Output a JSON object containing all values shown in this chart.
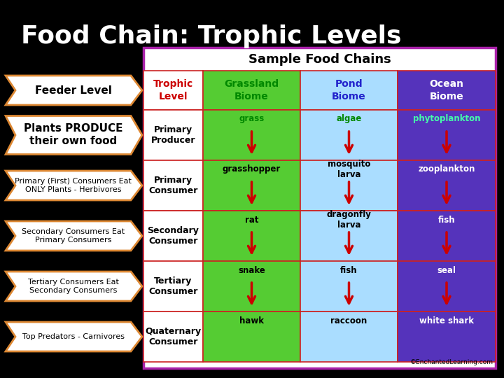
{
  "title": "Food Chain: Trophic Levels",
  "title_color": "#ffffff",
  "background_color": "#000000",
  "table_title": "Sample Food Chains",
  "col_headers": [
    "Trophic\nLevel",
    "Grassland\nBiome",
    "Pond\nBiome",
    "Ocean\nBiome"
  ],
  "col_header_bg_colors": [
    "#ffffff",
    "#55cc33",
    "#aaddff",
    "#5533bb"
  ],
  "col_header_text_colors": [
    "#cc0000",
    "#008800",
    "#2222cc",
    "#ffffff"
  ],
  "row_labels": [
    "Primary\nProducer",
    "Primary\nConsumer",
    "Secondary\nConsumer",
    "Tertiary\nConsumer",
    "Quaternary\nConsumer"
  ],
  "cell_bg_trophic": [
    "#ffffff",
    "#ffffff",
    "#ffffff",
    "#ffffff",
    "#ffffff"
  ],
  "cell_bg_grassland": [
    "#55cc33",
    "#55cc33",
    "#55cc33",
    "#55cc33",
    "#55cc33"
  ],
  "cell_bg_pond": [
    "#aaddff",
    "#aaddff",
    "#aaddff",
    "#aaddff",
    "#aaddff"
  ],
  "cell_bg_ocean": [
    "#5533bb",
    "#5533bb",
    "#5533bb",
    "#5533bb",
    "#5533bb"
  ],
  "grassland_texts": [
    "grass",
    "grasshopper",
    "rat",
    "snake",
    "hawk"
  ],
  "pond_texts": [
    "algae",
    "mosquito\nlarva",
    "dragonfly\nlarva",
    "fish",
    "raccoon"
  ],
  "ocean_texts": [
    "phytoplankton",
    "zooplankton",
    "fish",
    "seal",
    "white shark"
  ],
  "grassland_text_colors": [
    "#008800",
    "#000000",
    "#000000",
    "#000000",
    "#000000"
  ],
  "pond_text_colors": [
    "#008800",
    "#000000",
    "#000000",
    "#000000",
    "#000000"
  ],
  "ocean_text_colors": [
    "#44ffaa",
    "#ffffff",
    "#ffffff",
    "#ffffff",
    "#ffffff"
  ],
  "left_labels": [
    "Feeder Level",
    "Plants PRODUCE\ntheir own food",
    "Primary (First) Consumers Eat\nONLY Plants - Herbivores",
    "Secondary Consumers Eat\nPrimary Consumers",
    "Tertiary Consumers Eat\nSecondary Consumers",
    "Top Predators - Carnivores"
  ],
  "left_label_fontsizes": [
    11,
    11,
    8,
    8,
    8,
    8
  ],
  "left_label_fontweights": [
    "bold",
    "bold",
    "normal",
    "normal",
    "normal",
    "normal"
  ],
  "arrow_fill": "#ffffff",
  "arrow_edge": "#dd8833",
  "table_border_color": "#aa22aa",
  "grid_color": "#cc2222",
  "copyright": "©EnchantedLearning.com"
}
